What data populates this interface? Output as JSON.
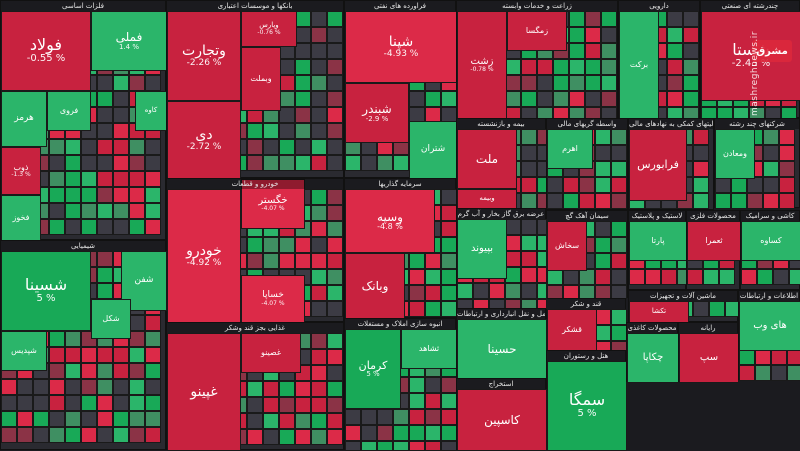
{
  "colors": {
    "up_strong": "#18a957",
    "up": "#2bb56a",
    "up_weak": "#3f8f62",
    "neutral": "#3c3b44",
    "down_weak": "#8b3346",
    "down": "#c8223f",
    "down_strong": "#dc2a48"
  },
  "watermark": {
    "text": "mashreghnews.ir",
    "logo": "مشرق"
  },
  "chart_data": {
    "type": "treemap",
    "title": "",
    "sectors": [
      {
        "name": "فلزات اساسی",
        "tiles": [
          {
            "name": "فولاد",
            "change": "-0.55 %"
          },
          {
            "name": "فملی",
            "change": "1.4 %"
          },
          {
            "name": "هرمز",
            "change": ""
          },
          {
            "name": "فروی",
            "change": ""
          },
          {
            "name": "کاوه",
            "change": ""
          },
          {
            "name": "ذوب",
            "change": "-1.3 %"
          },
          {
            "name": "فخوز",
            "change": ""
          }
        ]
      },
      {
        "name": "بانکها و موسسات اعتباری",
        "tiles": [
          {
            "name": "وتجارت",
            "change": "-2.26 %"
          },
          {
            "name": "وبملت",
            "change": ""
          },
          {
            "name": "دی",
            "change": "-2.72 %"
          },
          {
            "name": "وپارس",
            "change": "-0.76 %"
          }
        ]
      },
      {
        "name": "فراورده های نفتی",
        "tiles": [
          {
            "name": "شپنا",
            "change": "-4.93 %"
          },
          {
            "name": "شبندر",
            "change": "-2.9 %"
          },
          {
            "name": "شتران",
            "change": ""
          }
        ]
      },
      {
        "name": "زراعت و خدمات وابسته",
        "tiles": [
          {
            "name": "زشت",
            "change": "-0.78 %"
          },
          {
            "name": "زمگسا",
            "change": ""
          }
        ]
      },
      {
        "name": "دارویی",
        "tiles": [
          {
            "name": "برکت",
            "change": ""
          }
        ]
      },
      {
        "name": "چندرشته ای صنعتی",
        "tiles": [
          {
            "name": "شستا",
            "change": "-2.43 %"
          }
        ]
      },
      {
        "name": "خودرو و قطعات",
        "tiles": [
          {
            "name": "خودرو",
            "change": "-4.92 %"
          },
          {
            "name": "خگستر",
            "change": "-4.07 %"
          },
          {
            "name": "خساپا",
            "change": "-4.07 %"
          }
        ]
      },
      {
        "name": "سرمایه گذاریها",
        "tiles": [
          {
            "name": "وسپه",
            "change": "-4.8 %"
          },
          {
            "name": "وبانک",
            "change": ""
          }
        ]
      },
      {
        "name": "شیمیایی",
        "tiles": [
          {
            "name": "شسینا",
            "change": "5 %"
          },
          {
            "name": "شفن",
            "change": ""
          },
          {
            "name": "شکل",
            "change": ""
          },
          {
            "name": "شپدیس",
            "change": ""
          }
        ]
      },
      {
        "name": "بیمه و بازنشسته",
        "tiles": [
          {
            "name": "ملت",
            "change": ""
          },
          {
            "name": "وبیمه",
            "change": ""
          }
        ]
      },
      {
        "name": "واسطه گریهای مالی",
        "tiles": [
          {
            "name": "اهرم",
            "change": ""
          }
        ]
      },
      {
        "name": "فعالیتهای کمکی به نهادهای مالی",
        "tiles": [
          {
            "name": "فرابورس",
            "change": ""
          }
        ]
      },
      {
        "name": "شرکتهای چند رشته",
        "tiles": [
          {
            "name": "ومعادن",
            "change": ""
          }
        ]
      },
      {
        "name": "سیمان آهک گچ",
        "tiles": [
          {
            "name": "سخاش",
            "change": ""
          }
        ]
      },
      {
        "name": "لاستیک و پلاستیک",
        "tiles": [
          {
            "name": "پارتا",
            "change": ""
          }
        ]
      },
      {
        "name": "محصولات فلزی",
        "tiles": [
          {
            "name": "ثعمرا",
            "change": ""
          }
        ]
      },
      {
        "name": "کاشی و سرامیک",
        "tiles": [
          {
            "name": "کساوه",
            "change": ""
          }
        ]
      },
      {
        "name": "قند و شکر",
        "tiles": [
          {
            "name": "قشکر",
            "change": ""
          }
        ]
      },
      {
        "name": "عرضه برق گاز بخار و آب گرم",
        "tiles": [
          {
            "name": "بپیوند",
            "change": ""
          }
        ]
      },
      {
        "name": "ماشین آلات و تجهیزات",
        "tiles": [
          {
            "name": "تکشا",
            "change": ""
          }
        ]
      },
      {
        "name": "انبوه سازی املاک و مستغلات",
        "tiles": [
          {
            "name": "کرمان",
            "change": "5 %"
          },
          {
            "name": "ثشاهد",
            "change": ""
          }
        ]
      },
      {
        "name": "غذایی بجز قند وشکر",
        "tiles": [
          {
            "name": "غپینو",
            "change": ""
          },
          {
            "name": "غصینو",
            "change": ""
          }
        ]
      },
      {
        "name": "حمل و نقل انبارداری و ارتباطات",
        "tiles": [
          {
            "name": "حسینا",
            "change": ""
          }
        ]
      },
      {
        "name": "هتل و رستوران",
        "tiles": [
          {
            "name": "سمگا",
            "change": "5 %"
          }
        ]
      },
      {
        "name": "محصولات کاغذی",
        "tiles": [
          {
            "name": "چکاپا",
            "change": ""
          }
        ]
      },
      {
        "name": "رایانه",
        "tiles": [
          {
            "name": "سپ",
            "change": ""
          }
        ]
      },
      {
        "name": "اطلاعات و ارتباطات",
        "tiles": [
          {
            "name": "های وب",
            "change": ""
          }
        ]
      },
      {
        "name": "استخراج",
        "tiles": [
          {
            "name": "کاسپین",
            "change": ""
          }
        ]
      }
    ]
  }
}
